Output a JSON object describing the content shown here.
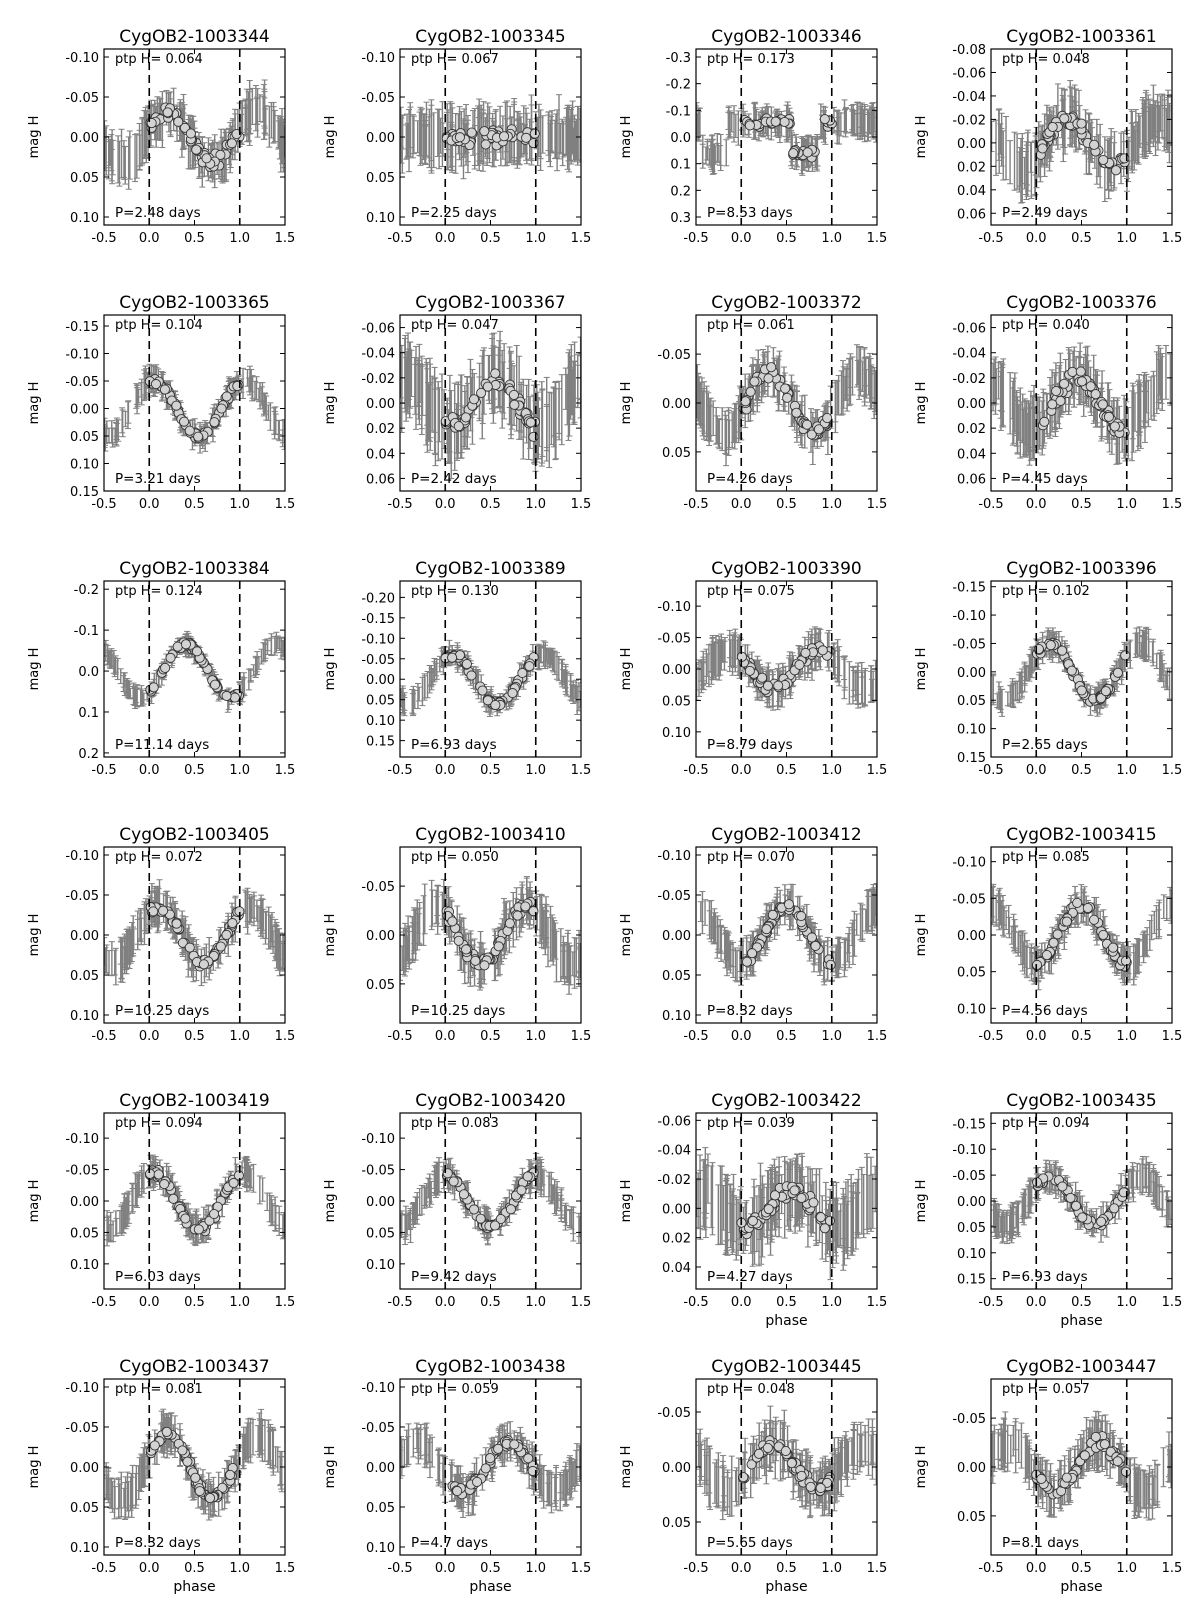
{
  "figure": {
    "xlabel": "phase",
    "ylabel": "mag H",
    "ptp_prefix": "ptp H=",
    "period_prefix": "P=",
    "period_unit": "days"
  },
  "colors": {
    "errorbar": "#808080",
    "point_fill": "#d3d3d3",
    "point_edge": "#333333",
    "axes": "#000000"
  },
  "chart_data": [
    {
      "type": "scatter",
      "title": "CygOB2-1003344",
      "ptp": "0.064",
      "period": "2.48",
      "ylim": [
        0.11,
        -0.11
      ],
      "yticks": [
        "-0.10",
        "-0.05",
        "0.00",
        "0.05",
        "0.10"
      ],
      "yvals": [
        -0.1,
        -0.05,
        0.0,
        0.05,
        0.1
      ],
      "xlim": [
        -0.5,
        1.5
      ],
      "xticks": [
        "-0.5",
        "0.0",
        "0.5",
        "1.0",
        "1.5"
      ],
      "xlabel": "",
      "shape": {
        "type": "sin",
        "amp": 0.032,
        "peak": 0.2,
        "center": 0.0,
        "npts": 60
      },
      "noise": 0.025,
      "grid": false
    },
    {
      "type": "scatter",
      "title": "CygOB2-1003345",
      "ptp": "0.067",
      "period": "2.25",
      "ylim": [
        0.11,
        -0.11
      ],
      "yticks": [
        "-0.10",
        "-0.05",
        "0.00",
        "0.05",
        "0.10"
      ],
      "yvals": [
        -0.1,
        -0.05,
        0.0,
        0.05,
        0.1
      ],
      "xlim": [
        -0.5,
        1.5
      ],
      "xticks": [
        "-0.5",
        "0.0",
        "0.5",
        "1.0",
        "1.5"
      ],
      "xlabel": "",
      "shape": {
        "type": "flat",
        "amp": 0.01,
        "peak": 0.5,
        "center": 0.0,
        "npts": 55
      },
      "noise": 0.03,
      "grid": false
    },
    {
      "type": "scatter",
      "title": "CygOB2-1003346",
      "ptp": "0.173",
      "period": "8.53",
      "ylim": [
        0.33,
        -0.33
      ],
      "yticks": [
        "-0.3",
        "-0.2",
        "-0.1",
        "0.0",
        "0.1",
        "0.2",
        "0.3"
      ],
      "yvals": [
        -0.3,
        -0.2,
        -0.1,
        0.0,
        0.1,
        0.2,
        0.3
      ],
      "xlim": [
        -0.5,
        1.5
      ],
      "xticks": [
        "-0.5",
        "0.0",
        "0.5",
        "1.0",
        "1.5"
      ],
      "xlabel": "",
      "shape": {
        "type": "dip",
        "amp": 0.1,
        "peak": 0.7,
        "center": -0.03,
        "npts": 45
      },
      "noise": 0.05,
      "grid": false
    },
    {
      "type": "scatter",
      "title": "CygOB2-1003361",
      "ptp": "0.048",
      "period": "2.49",
      "ylim": [
        0.07,
        -0.08
      ],
      "yticks": [
        "-0.08",
        "-0.06",
        "-0.04",
        "-0.02",
        "0.00",
        "0.02",
        "0.04",
        "0.06"
      ],
      "yvals": [
        -0.08,
        -0.06,
        -0.04,
        -0.02,
        0.0,
        0.02,
        0.04,
        0.06
      ],
      "xlim": [
        -0.5,
        1.5
      ],
      "xticks": [
        "-0.5",
        "0.0",
        "0.5",
        "1.0",
        "1.5"
      ],
      "xlabel": "",
      "shape": {
        "type": "sin",
        "amp": 0.02,
        "peak": 0.35,
        "center": 0.0,
        "npts": 60
      },
      "noise": 0.02,
      "grid": false
    },
    {
      "type": "scatter",
      "title": "CygOB2-1003365",
      "ptp": "0.104",
      "period": "3.21",
      "ylim": [
        0.15,
        -0.17
      ],
      "yticks": [
        "-0.15",
        "-0.10",
        "-0.05",
        "0.00",
        "0.05",
        "0.10",
        "0.15"
      ],
      "yvals": [
        -0.15,
        -0.1,
        -0.05,
        0.0,
        0.05,
        0.1,
        0.15
      ],
      "xlim": [
        -0.5,
        1.5
      ],
      "xticks": [
        "-0.5",
        "0.0",
        "0.5",
        "1.0",
        "1.5"
      ],
      "xlabel": "",
      "shape": {
        "type": "sin",
        "amp": 0.05,
        "peak": 0.05,
        "center": 0.0,
        "npts": 55
      },
      "noise": 0.02,
      "grid": false
    },
    {
      "type": "scatter",
      "title": "CygOB2-1003367",
      "ptp": "0.047",
      "period": "2.42",
      "ylim": [
        0.07,
        -0.07
      ],
      "yticks": [
        "-0.06",
        "-0.04",
        "-0.02",
        "0.00",
        "0.02",
        "0.04",
        "0.06"
      ],
      "yvals": [
        -0.06,
        -0.04,
        -0.02,
        0.0,
        0.02,
        0.04,
        0.06
      ],
      "xlim": [
        -0.5,
        1.5
      ],
      "xticks": [
        "-0.5",
        "0.0",
        "0.5",
        "1.0",
        "1.5"
      ],
      "xlabel": "",
      "shape": {
        "type": "sin",
        "amp": 0.02,
        "peak": 0.55,
        "center": 0.0,
        "npts": 60
      },
      "noise": 0.025,
      "grid": false
    },
    {
      "type": "scatter",
      "title": "CygOB2-1003372",
      "ptp": "0.061",
      "period": "4.26",
      "ylim": [
        0.09,
        -0.09
      ],
      "yticks": [
        "-0.05",
        "0.00",
        "0.05"
      ],
      "yvals": [
        -0.05,
        0.0,
        0.05
      ],
      "xlim": [
        -0.5,
        1.5
      ],
      "xticks": [
        "-0.5",
        "0.0",
        "0.5",
        "1.0",
        "1.5"
      ],
      "xlabel": "",
      "shape": {
        "type": "sin",
        "amp": 0.03,
        "peak": 0.3,
        "center": 0.0,
        "npts": 60
      },
      "noise": 0.02,
      "grid": false
    },
    {
      "type": "scatter",
      "title": "CygOB2-1003376",
      "ptp": "0.040",
      "period": "4.45",
      "ylim": [
        0.07,
        -0.07
      ],
      "yticks": [
        "-0.06",
        "-0.04",
        "-0.02",
        "0.00",
        "0.02",
        "0.04",
        "0.06"
      ],
      "yvals": [
        -0.06,
        -0.04,
        -0.02,
        0.0,
        0.02,
        0.04,
        0.06
      ],
      "xlim": [
        -0.5,
        1.5
      ],
      "xticks": [
        "-0.5",
        "0.0",
        "0.5",
        "1.0",
        "1.5"
      ],
      "xlabel": "",
      "shape": {
        "type": "sin",
        "amp": 0.02,
        "peak": 0.45,
        "center": 0.0,
        "npts": 60
      },
      "noise": 0.02,
      "grid": false
    },
    {
      "type": "scatter",
      "title": "CygOB2-1003384",
      "ptp": "0.124",
      "period": "11.14",
      "ylim": [
        0.21,
        -0.22
      ],
      "yticks": [
        "-0.2",
        "-0.1",
        "0.0",
        "0.1",
        "0.2"
      ],
      "yvals": [
        -0.2,
        -0.1,
        0.0,
        0.1,
        0.2
      ],
      "xlim": [
        -0.5,
        1.5
      ],
      "xticks": [
        "-0.5",
        "0.0",
        "0.5",
        "1.0",
        "1.5"
      ],
      "xlabel": "",
      "shape": {
        "type": "sin",
        "amp": 0.065,
        "peak": 0.4,
        "center": 0.0,
        "npts": 55
      },
      "noise": 0.02,
      "grid": false
    },
    {
      "type": "scatter",
      "title": "CygOB2-1003389",
      "ptp": "0.130",
      "period": "6.93",
      "ylim": [
        0.19,
        -0.24
      ],
      "yticks": [
        "-0.20",
        "-0.15",
        "-0.10",
        "-0.05",
        "0.00",
        "0.05",
        "0.10",
        "0.15"
      ],
      "yvals": [
        -0.2,
        -0.15,
        -0.1,
        -0.05,
        0.0,
        0.05,
        0.1,
        0.15
      ],
      "xlim": [
        -0.5,
        1.5
      ],
      "xticks": [
        "-0.5",
        "0.0",
        "0.5",
        "1.0",
        "1.5"
      ],
      "xlabel": "",
      "shape": {
        "type": "sin",
        "amp": 0.06,
        "peak": 0.08,
        "center": 0.0,
        "npts": 55
      },
      "noise": 0.025,
      "grid": false
    },
    {
      "type": "scatter",
      "title": "CygOB2-1003390",
      "ptp": "0.075",
      "period": "8.79",
      "ylim": [
        0.14,
        -0.14
      ],
      "yticks": [
        "-0.10",
        "-0.05",
        "0.00",
        "0.05",
        "0.10"
      ],
      "yvals": [
        -0.1,
        -0.05,
        0.0,
        0.05,
        0.1
      ],
      "xlim": [
        -0.5,
        1.5
      ],
      "xticks": [
        "-0.5",
        "0.0",
        "0.5",
        "1.0",
        "1.5"
      ],
      "xlabel": "",
      "shape": {
        "type": "sin",
        "amp": 0.03,
        "peak": 0.85,
        "center": 0.0,
        "npts": 60
      },
      "noise": 0.025,
      "grid": false
    },
    {
      "type": "scatter",
      "title": "CygOB2-1003396",
      "ptp": "0.102",
      "period": "2.65",
      "ylim": [
        0.15,
        -0.16
      ],
      "yticks": [
        "-0.15",
        "-0.10",
        "-0.05",
        "0.00",
        "0.05",
        "0.10",
        "0.15"
      ],
      "yvals": [
        -0.15,
        -0.1,
        -0.05,
        0.0,
        0.05,
        0.1,
        0.15
      ],
      "xlim": [
        -0.5,
        1.5
      ],
      "xticks": [
        "-0.5",
        "0.0",
        "0.5",
        "1.0",
        "1.5"
      ],
      "xlabel": "",
      "shape": {
        "type": "sin",
        "amp": 0.05,
        "peak": 0.15,
        "center": 0.0,
        "npts": 55
      },
      "noise": 0.02,
      "grid": false
    },
    {
      "type": "scatter",
      "title": "CygOB2-1003405",
      "ptp": "0.072",
      "period": "10.25",
      "ylim": [
        0.11,
        -0.11
      ],
      "yticks": [
        "-0.10",
        "-0.05",
        "0.00",
        "0.05",
        "0.10"
      ],
      "yvals": [
        -0.1,
        -0.05,
        0.0,
        0.05,
        0.1
      ],
      "xlim": [
        -0.5,
        1.5
      ],
      "xticks": [
        "-0.5",
        "0.0",
        "0.5",
        "1.0",
        "1.5"
      ],
      "xlabel": "",
      "shape": {
        "type": "sin",
        "amp": 0.035,
        "peak": 0.1,
        "center": 0.0,
        "npts": 60
      },
      "noise": 0.02,
      "grid": false
    },
    {
      "type": "scatter",
      "title": "CygOB2-1003410",
      "ptp": "0.050",
      "period": "10.25",
      "ylim": [
        0.09,
        -0.09
      ],
      "yticks": [
        "-0.05",
        "0.00",
        "0.05"
      ],
      "yvals": [
        -0.05,
        0.0,
        0.05
      ],
      "xlim": [
        -0.5,
        1.5
      ],
      "xticks": [
        "-0.5",
        "0.0",
        "0.5",
        "1.0",
        "1.5"
      ],
      "xlabel": "",
      "shape": {
        "type": "sin",
        "amp": 0.03,
        "peak": 0.9,
        "center": 0.0,
        "npts": 60
      },
      "noise": 0.02,
      "grid": false
    },
    {
      "type": "scatter",
      "title": "CygOB2-1003412",
      "ptp": "0.070",
      "period": "8.32",
      "ylim": [
        0.11,
        -0.11
      ],
      "yticks": [
        "-0.10",
        "-0.05",
        "0.00",
        "0.05",
        "0.10"
      ],
      "yvals": [
        -0.1,
        -0.05,
        0.0,
        0.05,
        0.1
      ],
      "xlim": [
        -0.5,
        1.5
      ],
      "xticks": [
        "-0.5",
        "0.0",
        "0.5",
        "1.0",
        "1.5"
      ],
      "xlabel": "",
      "shape": {
        "type": "sin",
        "amp": 0.035,
        "peak": 0.5,
        "center": 0.0,
        "npts": 55
      },
      "noise": 0.02,
      "grid": false
    },
    {
      "type": "scatter",
      "title": "CygOB2-1003415",
      "ptp": "0.085",
      "period": "4.56",
      "ylim": [
        0.12,
        -0.12
      ],
      "yticks": [
        "-0.10",
        "-0.05",
        "0.00",
        "0.05",
        "0.10"
      ],
      "yvals": [
        -0.1,
        -0.05,
        0.0,
        0.05,
        0.1
      ],
      "xlim": [
        -0.5,
        1.5
      ],
      "xticks": [
        "-0.5",
        "0.0",
        "0.5",
        "1.0",
        "1.5"
      ],
      "xlabel": "",
      "shape": {
        "type": "sin",
        "amp": 0.04,
        "peak": 0.5,
        "center": 0.0,
        "npts": 60
      },
      "noise": 0.02,
      "grid": false
    },
    {
      "type": "scatter",
      "title": "CygOB2-1003419",
      "ptp": "0.094",
      "period": "6.03",
      "ylim": [
        0.14,
        -0.14
      ],
      "yticks": [
        "-0.10",
        "-0.05",
        "0.00",
        "0.05",
        "0.10"
      ],
      "yvals": [
        -0.1,
        -0.05,
        0.0,
        0.05,
        0.1
      ],
      "xlim": [
        -0.5,
        1.5
      ],
      "xticks": [
        "-0.5",
        "0.0",
        "0.5",
        "1.0",
        "1.5"
      ],
      "xlabel": "",
      "shape": {
        "type": "sin",
        "amp": 0.045,
        "peak": 0.05,
        "center": 0.0,
        "npts": 55
      },
      "noise": 0.02,
      "grid": false
    },
    {
      "type": "scatter",
      "title": "CygOB2-1003420",
      "ptp": "0.083",
      "period": "9.42",
      "ylim": [
        0.14,
        -0.14
      ],
      "yticks": [
        "-0.10",
        "-0.05",
        "0.00",
        "0.05",
        "0.10"
      ],
      "yvals": [
        -0.1,
        -0.05,
        0.0,
        0.05,
        0.1
      ],
      "xlim": [
        -0.5,
        1.5
      ],
      "xticks": [
        "-0.5",
        "0.0",
        "0.5",
        "1.0",
        "1.5"
      ],
      "xlabel": "",
      "shape": {
        "type": "sin",
        "amp": 0.04,
        "peak": 0.0,
        "center": 0.0,
        "npts": 60
      },
      "noise": 0.02,
      "grid": false
    },
    {
      "type": "scatter",
      "title": "CygOB2-1003422",
      "ptp": "0.039",
      "period": "4.27",
      "ylim": [
        0.055,
        -0.065
      ],
      "yticks": [
        "-0.06",
        "-0.04",
        "-0.02",
        "0.00",
        "0.02",
        "0.04"
      ],
      "yvals": [
        -0.06,
        -0.04,
        -0.02,
        0.0,
        0.02,
        0.04
      ],
      "xlim": [
        -0.5,
        1.5
      ],
      "xticks": [
        "-0.5",
        "0.0",
        "0.5",
        "1.0",
        "1.5"
      ],
      "xlabel": "phase",
      "shape": {
        "type": "sin",
        "amp": 0.012,
        "peak": 0.55,
        "center": 0.0,
        "npts": 60
      },
      "noise": 0.02,
      "grid": false
    },
    {
      "type": "scatter",
      "title": "CygOB2-1003435",
      "ptp": "0.094",
      "period": "6.93",
      "ylim": [
        0.17,
        -0.17
      ],
      "yticks": [
        "-0.15",
        "-0.10",
        "-0.05",
        "0.00",
        "0.05",
        "0.10",
        "0.15"
      ],
      "yvals": [
        -0.15,
        -0.1,
        -0.05,
        0.0,
        0.05,
        0.1,
        0.15
      ],
      "xlim": [
        -0.5,
        1.5
      ],
      "xticks": [
        "-0.5",
        "0.0",
        "0.5",
        "1.0",
        "1.5"
      ],
      "xlabel": "phase",
      "shape": {
        "type": "sin",
        "amp": 0.045,
        "peak": 0.15,
        "center": 0.0,
        "npts": 55
      },
      "noise": 0.025,
      "grid": false
    },
    {
      "type": "scatter",
      "title": "CygOB2-1003437",
      "ptp": "0.081",
      "period": "8.32",
      "ylim": [
        0.11,
        -0.11
      ],
      "yticks": [
        "-0.10",
        "-0.05",
        "0.00",
        "0.05",
        "0.10"
      ],
      "yvals": [
        -0.1,
        -0.05,
        0.0,
        0.05,
        0.1
      ],
      "xlim": [
        -0.5,
        1.5
      ],
      "xticks": [
        "-0.5",
        "0.0",
        "0.5",
        "1.0",
        "1.5"
      ],
      "xlabel": "phase",
      "shape": {
        "type": "sin",
        "amp": 0.04,
        "peak": 0.2,
        "center": 0.0,
        "npts": 60
      },
      "noise": 0.02,
      "grid": false
    },
    {
      "type": "scatter",
      "title": "CygOB2-1003438",
      "ptp": "0.059",
      "period": "4.7",
      "ylim": [
        0.11,
        -0.11
      ],
      "yticks": [
        "-0.10",
        "-0.05",
        "0.00",
        "0.05",
        "0.10"
      ],
      "yvals": [
        -0.1,
        -0.05,
        0.0,
        0.05,
        0.1
      ],
      "xlim": [
        -0.5,
        1.5
      ],
      "xticks": [
        "-0.5",
        "0.0",
        "0.5",
        "1.0",
        "1.5"
      ],
      "xlabel": "phase",
      "shape": {
        "type": "sin",
        "amp": 0.03,
        "peak": 0.7,
        "center": 0.0,
        "npts": 55
      },
      "noise": 0.02,
      "grid": false
    },
    {
      "type": "scatter",
      "title": "CygOB2-1003445",
      "ptp": "0.048",
      "period": "5.65",
      "ylim": [
        0.08,
        -0.08
      ],
      "yticks": [
        "-0.05",
        "0.00",
        "0.05"
      ],
      "yvals": [
        -0.05,
        0.0,
        0.05
      ],
      "xlim": [
        -0.5,
        1.5
      ],
      "xticks": [
        "-0.5",
        "0.0",
        "0.5",
        "1.0",
        "1.5"
      ],
      "xlabel": "phase",
      "shape": {
        "type": "sin",
        "amp": 0.02,
        "peak": 0.35,
        "center": 0.0,
        "npts": 60
      },
      "noise": 0.02,
      "grid": false
    },
    {
      "type": "scatter",
      "title": "CygOB2-1003447",
      "ptp": "0.057",
      "period": "8.1",
      "ylim": [
        0.09,
        -0.09
      ],
      "yticks": [
        "-0.05",
        "0.00",
        "0.05"
      ],
      "yvals": [
        -0.05,
        0.0,
        0.05
      ],
      "xlim": [
        -0.5,
        1.5
      ],
      "xticks": [
        "-0.5",
        "0.0",
        "0.5",
        "1.0",
        "1.5"
      ],
      "xlabel": "phase",
      "shape": {
        "type": "sin",
        "amp": 0.025,
        "peak": 0.7,
        "center": 0.0,
        "npts": 60
      },
      "noise": 0.02,
      "grid": false
    }
  ]
}
